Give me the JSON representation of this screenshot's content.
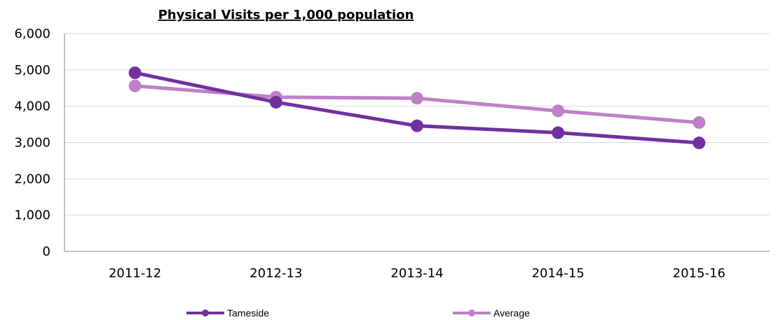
{
  "chart_data": {
    "type": "line",
    "title": "Physical Visits per 1,000 population",
    "xlabel": "",
    "ylabel": "",
    "categories": [
      "2011-12",
      "2012-13",
      "2013-14",
      "2014-15",
      "2015-16"
    ],
    "ylim": [
      0,
      6000
    ],
    "yticks": [
      0,
      1000,
      2000,
      3000,
      4000,
      5000,
      6000
    ],
    "ytick_labels": [
      "0",
      "1,000",
      "2,000",
      "3,000",
      "4,000",
      "5,000",
      "6,000"
    ],
    "grid": true,
    "legend_position": "bottom",
    "series": [
      {
        "name": "Tameside",
        "color": "#7030a0",
        "values": [
          4920,
          4110,
          3460,
          3270,
          2990
        ]
      },
      {
        "name": "Average",
        "color": "#bf80c7",
        "values": [
          4560,
          4250,
          4220,
          3870,
          3550
        ]
      }
    ]
  }
}
